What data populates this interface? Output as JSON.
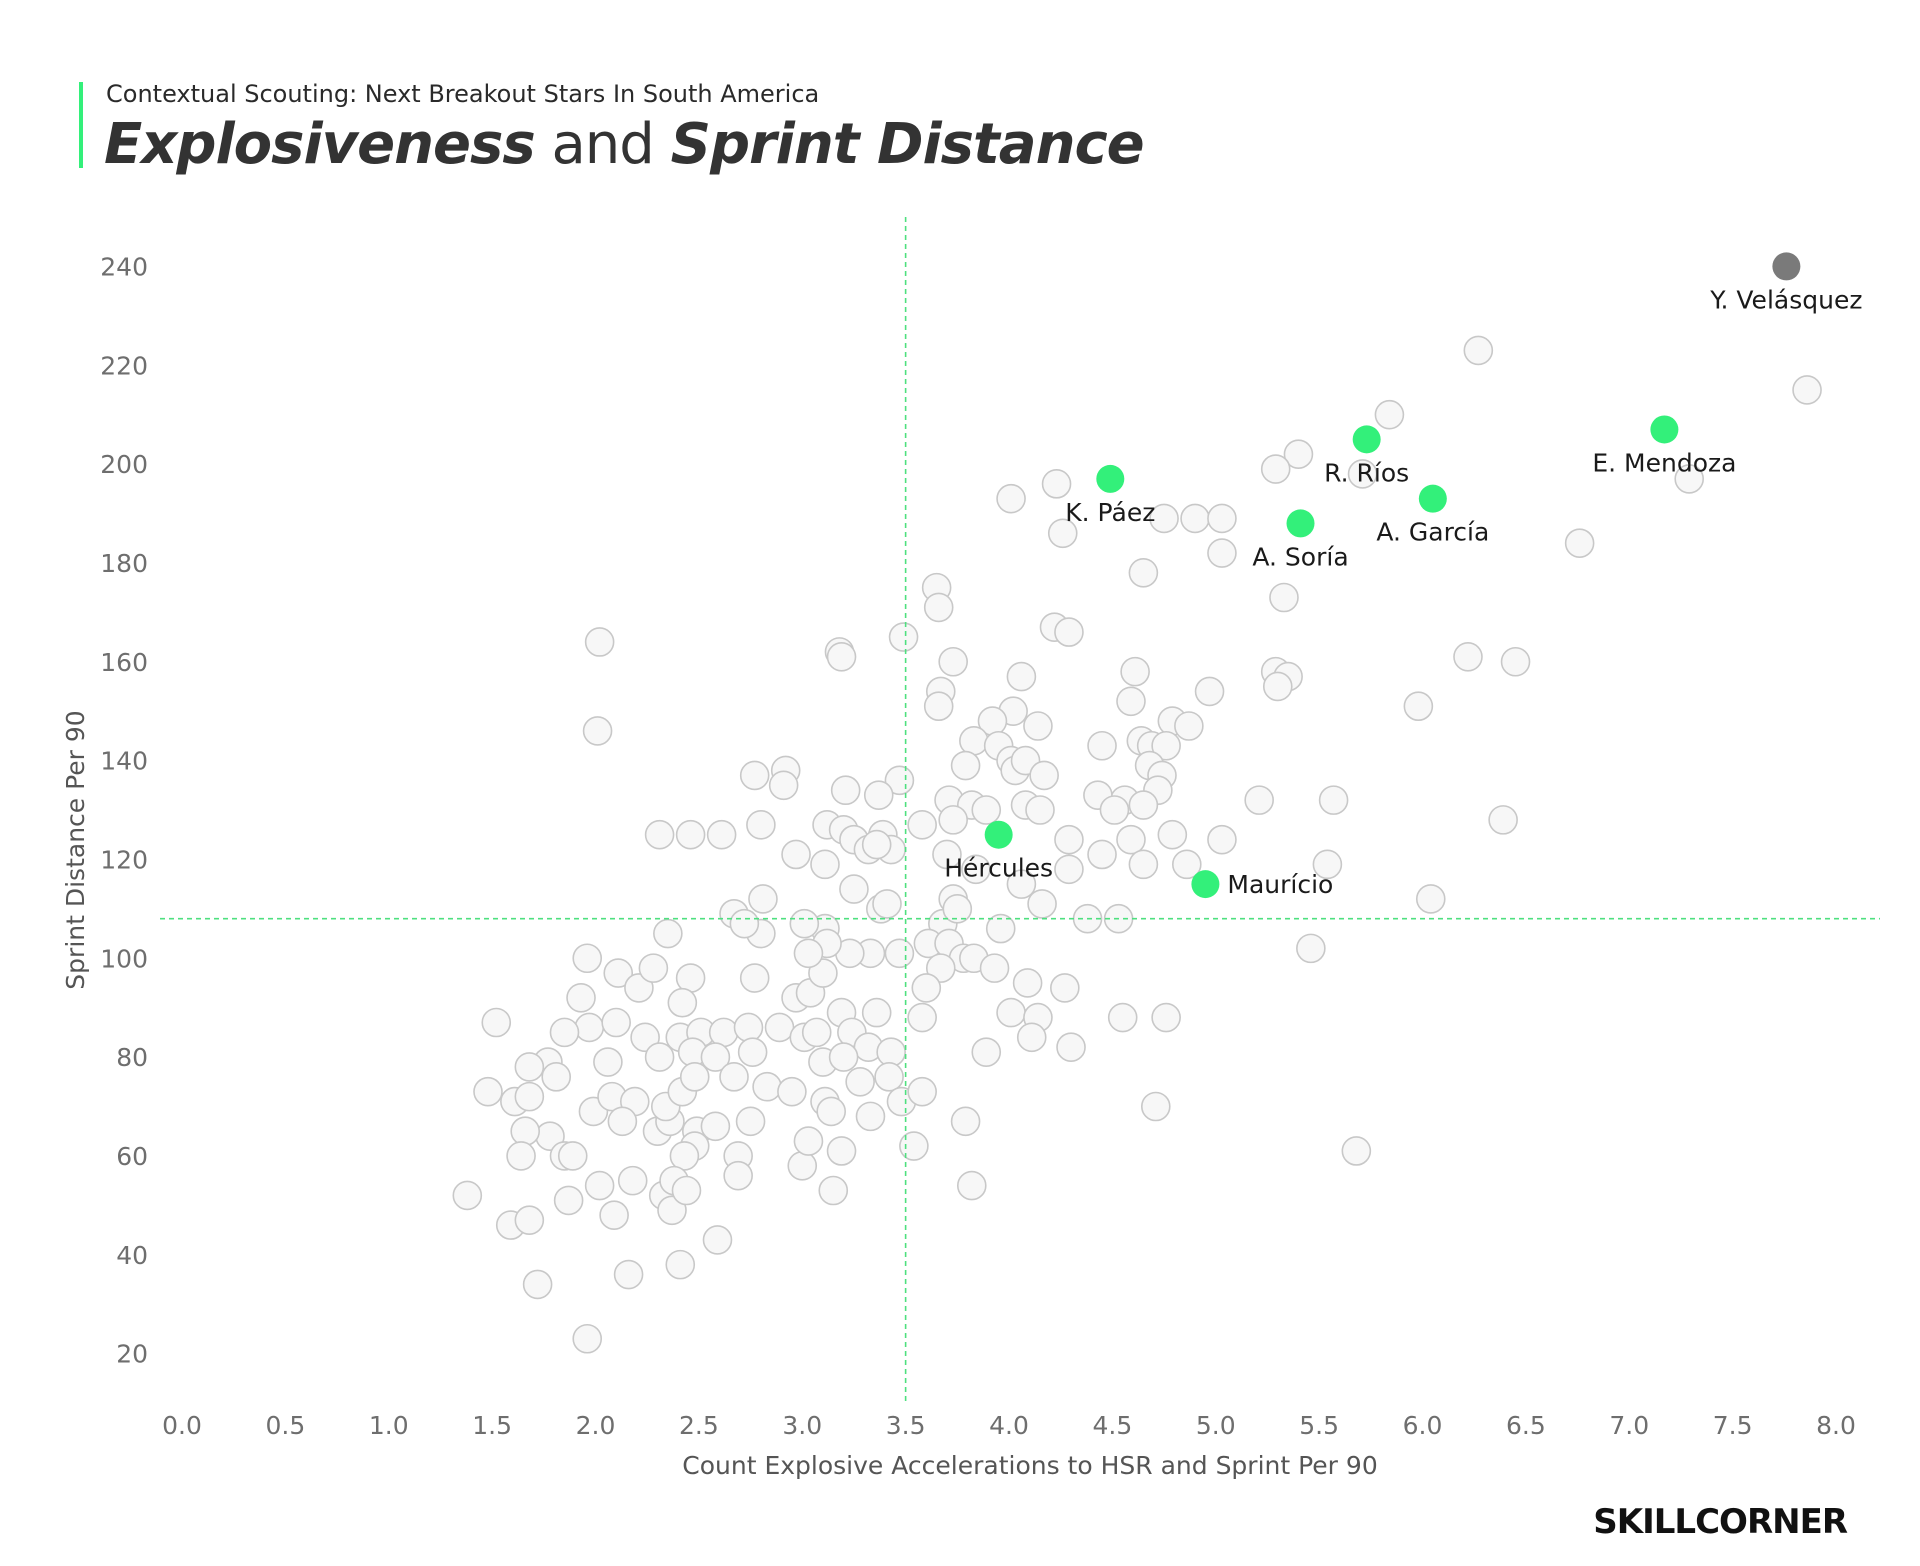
{
  "header": {
    "subtitle": "Contextual Scouting: Next Breakout Stars In South America",
    "title_part1": "Explosiveness",
    "title_part2": "and",
    "title_part3": "Sprint Distance"
  },
  "brand": "SKILLCORNER",
  "colors": {
    "accent": "#33f07a",
    "highlight_gray": "#7a7a7a",
    "background_point_fill": "#f7f7f7",
    "background_point_stroke": "#c8c8c8",
    "axis_text": "#6e6e6e",
    "reference_line": "#4ee07f"
  },
  "chart_data": {
    "type": "scatter",
    "title": "Explosiveness and Sprint Distance",
    "xlabel": "Count Explosive Accelerations to HSR and Sprint Per 90",
    "ylabel": "Sprint Distance Per 90",
    "xlim": [
      0,
      8
    ],
    "ylim": [
      10,
      250
    ],
    "xticks": [
      0,
      0.5,
      1,
      1.5,
      2,
      2.5,
      3,
      3.5,
      4,
      4.5,
      5,
      5.5,
      6,
      6.5,
      7,
      7.5,
      8
    ],
    "xtick_labels": [
      "0.0",
      "0.5",
      "1.0",
      "1.5",
      "2.0",
      "2.5",
      "3.0",
      "3.5",
      "4.0",
      "4.5",
      "5.0",
      "5.5",
      "6.0",
      "6.5",
      "7.0",
      "7.5",
      "8.0"
    ],
    "yticks": [
      20,
      40,
      60,
      80,
      100,
      120,
      140,
      160,
      180,
      200,
      220,
      240
    ],
    "ytick_labels": [
      "20",
      "40",
      "60",
      "80",
      "100",
      "120",
      "140",
      "160",
      "180",
      "200",
      "220",
      "240"
    ],
    "grid": false,
    "reference_lines": {
      "x": 3.5,
      "y": 108
    },
    "highlighted": [
      {
        "name": "Y. Velásquez",
        "x": 7.76,
        "y": 240,
        "color": "#7a7a7a",
        "label_pos": "below"
      },
      {
        "name": "E. Mendoza",
        "x": 7.17,
        "y": 207,
        "color": "#33f07a",
        "label_pos": "below"
      },
      {
        "name": "R. Ríos",
        "x": 5.73,
        "y": 205,
        "color": "#33f07a",
        "label_pos": "below"
      },
      {
        "name": "A. García",
        "x": 6.05,
        "y": 193,
        "color": "#33f07a",
        "label_pos": "below"
      },
      {
        "name": "A. Soría",
        "x": 5.41,
        "y": 188,
        "color": "#33f07a",
        "label_pos": "below"
      },
      {
        "name": "K. Páez",
        "x": 4.49,
        "y": 197,
        "color": "#33f07a",
        "label_pos": "below"
      },
      {
        "name": "Hércules",
        "x": 3.95,
        "y": 125,
        "color": "#33f07a",
        "label_pos": "below"
      },
      {
        "name": "Maurício",
        "x": 4.95,
        "y": 115,
        "color": "#33f07a",
        "label_pos": "right"
      }
    ],
    "others": [
      [
        7.86,
        215
      ],
      [
        6.27,
        223
      ],
      [
        5.84,
        210
      ],
      [
        5.4,
        202
      ],
      [
        5.29,
        199
      ],
      [
        5.71,
        198
      ],
      [
        7.29,
        197
      ],
      [
        4.23,
        196
      ],
      [
        4.01,
        193
      ],
      [
        4.26,
        186
      ],
      [
        4.75,
        189
      ],
      [
        4.9,
        189
      ],
      [
        5.03,
        189
      ],
      [
        5.03,
        182
      ],
      [
        6.76,
        184
      ],
      [
        4.65,
        178
      ],
      [
        5.33,
        173
      ],
      [
        3.65,
        175
      ],
      [
        3.66,
        171
      ],
      [
        4.22,
        167
      ],
      [
        4.29,
        166
      ],
      [
        3.49,
        165
      ],
      [
        2.02,
        164
      ],
      [
        3.18,
        162
      ],
      [
        3.19,
        161
      ],
      [
        3.73,
        160
      ],
      [
        4.06,
        157
      ],
      [
        4.61,
        158
      ],
      [
        5.29,
        158
      ],
      [
        5.35,
        157
      ],
      [
        5.3,
        155
      ],
      [
        6.22,
        161
      ],
      [
        6.45,
        160
      ],
      [
        4.97,
        154
      ],
      [
        3.67,
        154
      ],
      [
        3.66,
        151
      ],
      [
        4.59,
        152
      ],
      [
        5.98,
        151
      ],
      [
        4.02,
        150
      ],
      [
        2.01,
        146
      ],
      [
        3.92,
        148
      ],
      [
        4.14,
        147
      ],
      [
        4.79,
        148
      ],
      [
        4.87,
        147
      ],
      [
        4.64,
        144
      ],
      [
        4.69,
        143
      ],
      [
        3.83,
        144
      ],
      [
        3.95,
        143
      ],
      [
        4.01,
        140
      ],
      [
        3.79,
        139
      ],
      [
        4.03,
        138
      ],
      [
        4.08,
        140
      ],
      [
        4.17,
        137
      ],
      [
        4.45,
        143
      ],
      [
        4.76,
        143
      ],
      [
        4.68,
        139
      ],
      [
        4.74,
        137
      ],
      [
        4.56,
        132
      ],
      [
        4.43,
        133
      ],
      [
        4.51,
        130
      ],
      [
        4.72,
        134
      ],
      [
        4.65,
        131
      ],
      [
        3.47,
        136
      ],
      [
        2.92,
        138
      ],
      [
        2.77,
        137
      ],
      [
        2.91,
        135
      ],
      [
        3.21,
        134
      ],
      [
        3.37,
        133
      ],
      [
        3.71,
        132
      ],
      [
        3.82,
        131
      ],
      [
        3.89,
        130
      ],
      [
        3.73,
        128
      ],
      [
        3.58,
        127
      ],
      [
        4.08,
        131
      ],
      [
        4.15,
        130
      ],
      [
        5.21,
        132
      ],
      [
        5.57,
        132
      ],
      [
        6.39,
        128
      ],
      [
        3.12,
        127
      ],
      [
        3.2,
        126
      ],
      [
        3.25,
        124
      ],
      [
        3.32,
        122
      ],
      [
        3.39,
        125
      ],
      [
        3.43,
        122
      ],
      [
        3.36,
        123
      ],
      [
        2.8,
        127
      ],
      [
        2.61,
        125
      ],
      [
        2.46,
        125
      ],
      [
        2.31,
        125
      ],
      [
        2.97,
        121
      ],
      [
        3.11,
        119
      ],
      [
        3.25,
        114
      ],
      [
        3.38,
        110
      ],
      [
        3.41,
        111
      ],
      [
        3.7,
        121
      ],
      [
        3.84,
        118
      ],
      [
        4.29,
        124
      ],
      [
        4.29,
        118
      ],
      [
        4.45,
        121
      ],
      [
        4.59,
        124
      ],
      [
        4.65,
        119
      ],
      [
        4.79,
        125
      ],
      [
        4.86,
        119
      ],
      [
        5.03,
        124
      ],
      [
        5.54,
        119
      ],
      [
        6.04,
        112
      ],
      [
        4.06,
        115
      ],
      [
        4.16,
        111
      ],
      [
        4.38,
        108
      ],
      [
        4.53,
        108
      ],
      [
        3.68,
        107
      ],
      [
        3.73,
        112
      ],
      [
        3.75,
        110
      ],
      [
        3.96,
        106
      ],
      [
        3.61,
        103
      ],
      [
        3.71,
        103
      ],
      [
        3.78,
        100
      ],
      [
        3.83,
        100
      ],
      [
        3.93,
        98
      ],
      [
        3.67,
        98
      ],
      [
        3.47,
        101
      ],
      [
        3.33,
        101
      ],
      [
        3.23,
        101
      ],
      [
        3.11,
        106
      ],
      [
        3.01,
        107
      ],
      [
        2.81,
        112
      ],
      [
        2.8,
        105
      ],
      [
        2.67,
        109
      ],
      [
        2.72,
        107
      ],
      [
        2.35,
        105
      ],
      [
        2.77,
        96
      ],
      [
        2.97,
        92
      ],
      [
        3.04,
        93
      ],
      [
        3.1,
        97
      ],
      [
        3.19,
        89
      ],
      [
        3.36,
        89
      ],
      [
        3.12,
        103
      ],
      [
        3.03,
        101
      ],
      [
        1.96,
        100
      ],
      [
        2.11,
        97
      ],
      [
        2.21,
        94
      ],
      [
        2.28,
        98
      ],
      [
        2.46,
        96
      ],
      [
        2.42,
        91
      ],
      [
        1.93,
        92
      ],
      [
        1.97,
        86
      ],
      [
        2.1,
        87
      ],
      [
        1.85,
        85
      ],
      [
        2.24,
        84
      ],
      [
        2.41,
        84
      ],
      [
        2.51,
        85
      ],
      [
        2.62,
        85
      ],
      [
        2.74,
        86
      ],
      [
        2.89,
        86
      ],
      [
        3.01,
        84
      ],
      [
        3.07,
        85
      ],
      [
        3.24,
        85
      ],
      [
        3.32,
        82
      ],
      [
        3.43,
        81
      ],
      [
        2.31,
        80
      ],
      [
        2.47,
        81
      ],
      [
        2.58,
        80
      ],
      [
        2.76,
        81
      ],
      [
        2.67,
        76
      ],
      [
        2.83,
        74
      ],
      [
        2.95,
        73
      ],
      [
        3.1,
        79
      ],
      [
        3.2,
        80
      ],
      [
        3.28,
        75
      ],
      [
        3.11,
        71
      ],
      [
        3.14,
        69
      ],
      [
        3.33,
        68
      ],
      [
        3.42,
        76
      ],
      [
        3.48,
        71
      ],
      [
        3.54,
        62
      ],
      [
        3.58,
        88
      ],
      [
        3.6,
        94
      ],
      [
        3.58,
        73
      ],
      [
        3.79,
        67
      ],
      [
        3.89,
        81
      ],
      [
        4.01,
        89
      ],
      [
        4.09,
        95
      ],
      [
        4.14,
        88
      ],
      [
        4.11,
        84
      ],
      [
        4.27,
        94
      ],
      [
        4.3,
        82
      ],
      [
        4.55,
        88
      ],
      [
        4.76,
        88
      ],
      [
        4.71,
        70
      ],
      [
        5.46,
        102
      ],
      [
        5.68,
        61
      ],
      [
        3.82,
        54
      ],
      [
        1.52,
        87
      ],
      [
        1.77,
        79
      ],
      [
        1.68,
        78
      ],
      [
        1.48,
        73
      ],
      [
        1.61,
        71
      ],
      [
        1.68,
        72
      ],
      [
        1.78,
        64
      ],
      [
        1.66,
        65
      ],
      [
        1.64,
        60
      ],
      [
        1.85,
        60
      ],
      [
        1.89,
        60
      ],
      [
        1.87,
        51
      ],
      [
        1.81,
        76
      ],
      [
        1.99,
        69
      ],
      [
        2.06,
        79
      ],
      [
        2.08,
        72
      ],
      [
        2.19,
        71
      ],
      [
        2.13,
        67
      ],
      [
        2.3,
        65
      ],
      [
        2.36,
        67
      ],
      [
        2.34,
        70
      ],
      [
        2.42,
        73
      ],
      [
        2.48,
        76
      ],
      [
        2.49,
        65
      ],
      [
        2.58,
        66
      ],
      [
        2.69,
        60
      ],
      [
        2.75,
        67
      ],
      [
        2.69,
        56
      ],
      [
        2.48,
        62
      ],
      [
        2.43,
        60
      ],
      [
        2.33,
        52
      ],
      [
        2.38,
        55
      ],
      [
        2.37,
        49
      ],
      [
        2.44,
        53
      ],
      [
        2.18,
        55
      ],
      [
        2.02,
        54
      ],
      [
        2.09,
        48
      ],
      [
        2.16,
        36
      ],
      [
        1.38,
        52
      ],
      [
        1.59,
        46
      ],
      [
        1.68,
        47
      ],
      [
        1.72,
        34
      ],
      [
        2.41,
        38
      ],
      [
        2.59,
        43
      ],
      [
        1.96,
        23
      ],
      [
        3.15,
        53
      ],
      [
        3.19,
        61
      ],
      [
        3.0,
        58
      ],
      [
        3.03,
        63
      ]
    ]
  }
}
